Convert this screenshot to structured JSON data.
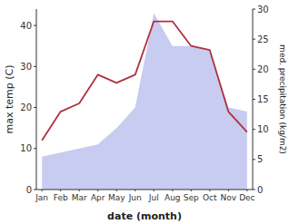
{
  "chart_data": {
    "type": "line",
    "categories": [
      "Jan",
      "Feb",
      "Mar",
      "Apr",
      "May",
      "Jun",
      "Jul",
      "Aug",
      "Sep",
      "Oct",
      "Nov",
      "Dec"
    ],
    "series": [
      {
        "type": "area",
        "color": "#c8ccf0",
        "values": [
          8,
          9,
          10,
          11,
          15,
          20,
          43,
          35,
          35,
          34,
          20,
          19
        ]
      },
      {
        "type": "line",
        "color": "#b03040",
        "values": [
          12,
          19,
          21,
          28,
          26,
          28,
          41,
          41,
          35,
          34,
          19,
          14
        ]
      }
    ],
    "xlabel": "date (month)",
    "ylabel": "max temp (C)",
    "y2label": "med. precipitation (kg/m2)",
    "ylim": [
      0,
      44
    ],
    "yticks": [
      0,
      10,
      20,
      30,
      40
    ],
    "y2lim": [
      0,
      30
    ],
    "y2ticks": [
      0,
      5,
      10,
      15,
      20,
      25,
      30
    ],
    "grid": false
  }
}
